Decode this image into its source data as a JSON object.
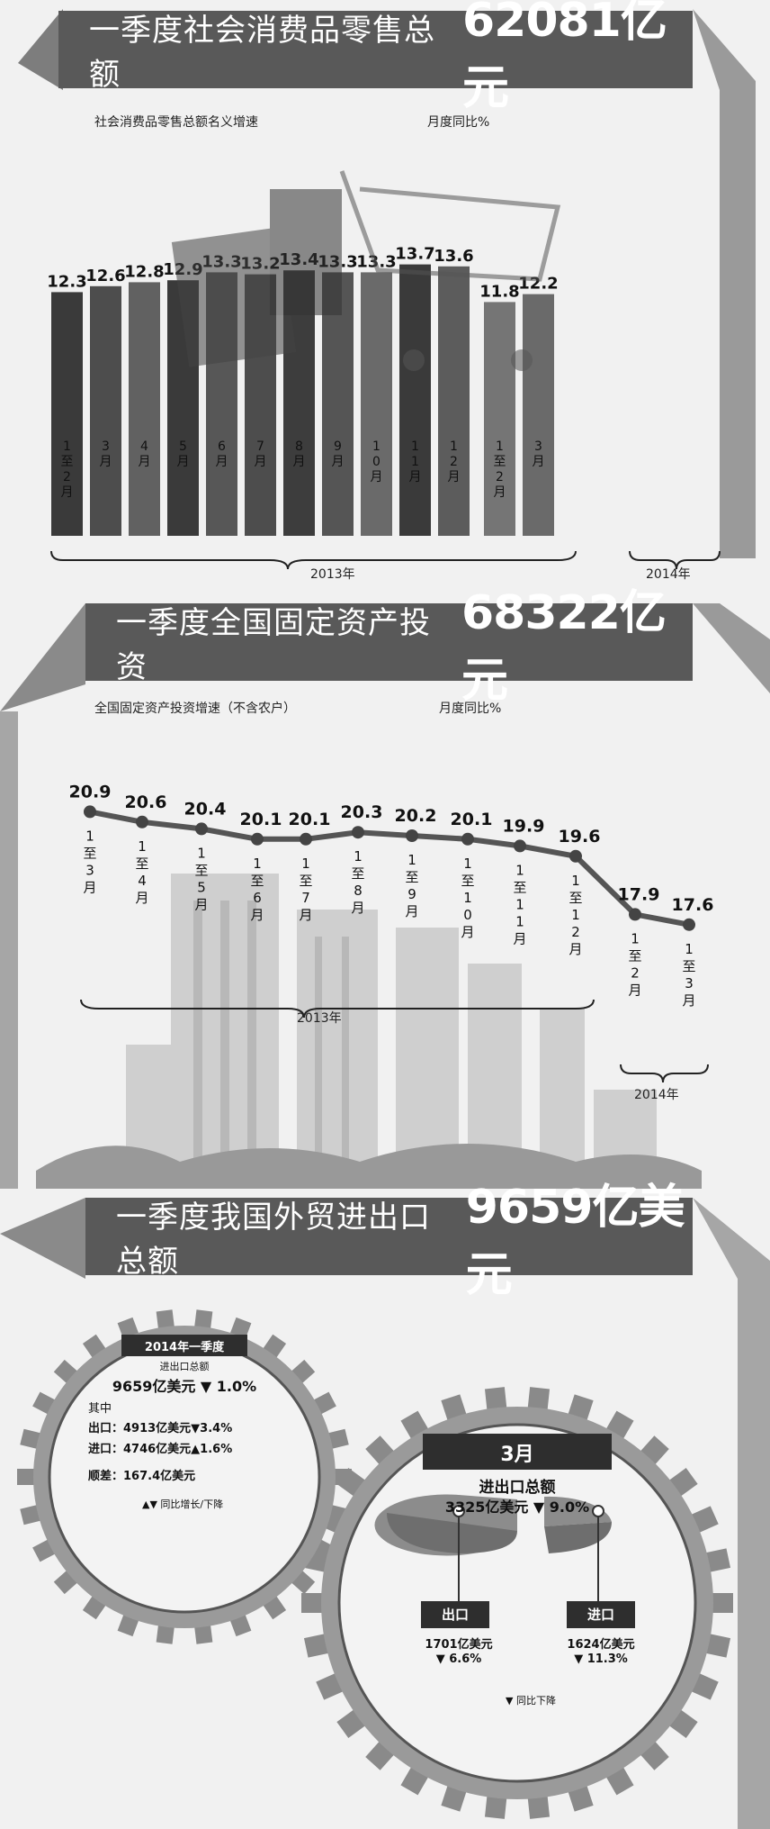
{
  "section1": {
    "title": "一季度社会消费品零售总额",
    "value": "62081亿元",
    "subtitle": "社会消费品零售总额名义增速",
    "unit": "月度同比%",
    "year_2013": "2013年",
    "year_2014": "2014年"
  },
  "section2": {
    "title": "一季度全国固定资产投资",
    "value": "68322亿元",
    "subtitle": "全国固定资产投资增速（不含农户）",
    "unit": "月度同比%",
    "year_2013": "2013年",
    "year_2014": "2014年"
  },
  "section3": {
    "title": "一季度我国外贸进出口总额",
    "value": "9659亿美元",
    "left": {
      "header": "2014年一季度",
      "label": "进出口总额",
      "total": "9659亿美元 ▼ 1.0%",
      "qizhong": "其中",
      "export": "出口：4913亿美元▼3.4%",
      "import": "进口：4746亿美元▲1.6%",
      "surplus": "顺差：167.4亿美元",
      "legend": "▲▼ 同比增长/下降"
    },
    "right": {
      "header": "3月",
      "label": "进出口总额",
      "total": "3325亿美元 ▼ 9.0%",
      "export_label": "出口",
      "export_value": "1701亿美元",
      "export_change": "▼ 6.6%",
      "import_label": "进口",
      "import_value": "1624亿美元",
      "import_change": "▼ 11.3%",
      "legend": "▼ 同比下降"
    }
  },
  "chart_data": [
    {
      "type": "bar",
      "title": "社会消费品零售总额名义增速",
      "ylabel": "月度同比%",
      "categories": [
        "1至2月",
        "3月",
        "4月",
        "5月",
        "6月",
        "7月",
        "8月",
        "9月",
        "10月",
        "11月",
        "12月",
        "1至2月",
        "3月"
      ],
      "values": [
        12.3,
        12.6,
        12.8,
        12.9,
        13.3,
        13.2,
        13.4,
        13.3,
        13.3,
        13.7,
        13.6,
        11.8,
        12.2
      ],
      "groups": [
        "2013年",
        "2014年"
      ],
      "colors": [
        "#3a3a3a",
        "#4d4d4d",
        "#616161",
        "#3a3a3a",
        "#575757",
        "#4d4d4d",
        "#3d3d3d",
        "#555555",
        "#6a6a6a",
        "#3a3a3a",
        "#5c5c5c",
        "#757575",
        "#6a6a6a"
      ]
    },
    {
      "type": "line",
      "title": "全国固定资产投资增速（不含农户）",
      "ylabel": "月度同比%",
      "categories": [
        "1至3月",
        "1至4月",
        "1至5月",
        "1至6月",
        "1至7月",
        "1至8月",
        "1至9月",
        "1至10月",
        "1至11月",
        "1至12月",
        "1至2月",
        "1至3月"
      ],
      "values": [
        20.9,
        20.6,
        20.4,
        20.1,
        20.1,
        20.3,
        20.2,
        20.1,
        19.9,
        19.6,
        17.9,
        17.6
      ],
      "groups": [
        "2013年",
        "2014年"
      ]
    },
    {
      "type": "pie",
      "title": "3月进出口总额",
      "labels": [
        "出口",
        "进口"
      ],
      "values": [
        1701,
        1624
      ]
    }
  ]
}
